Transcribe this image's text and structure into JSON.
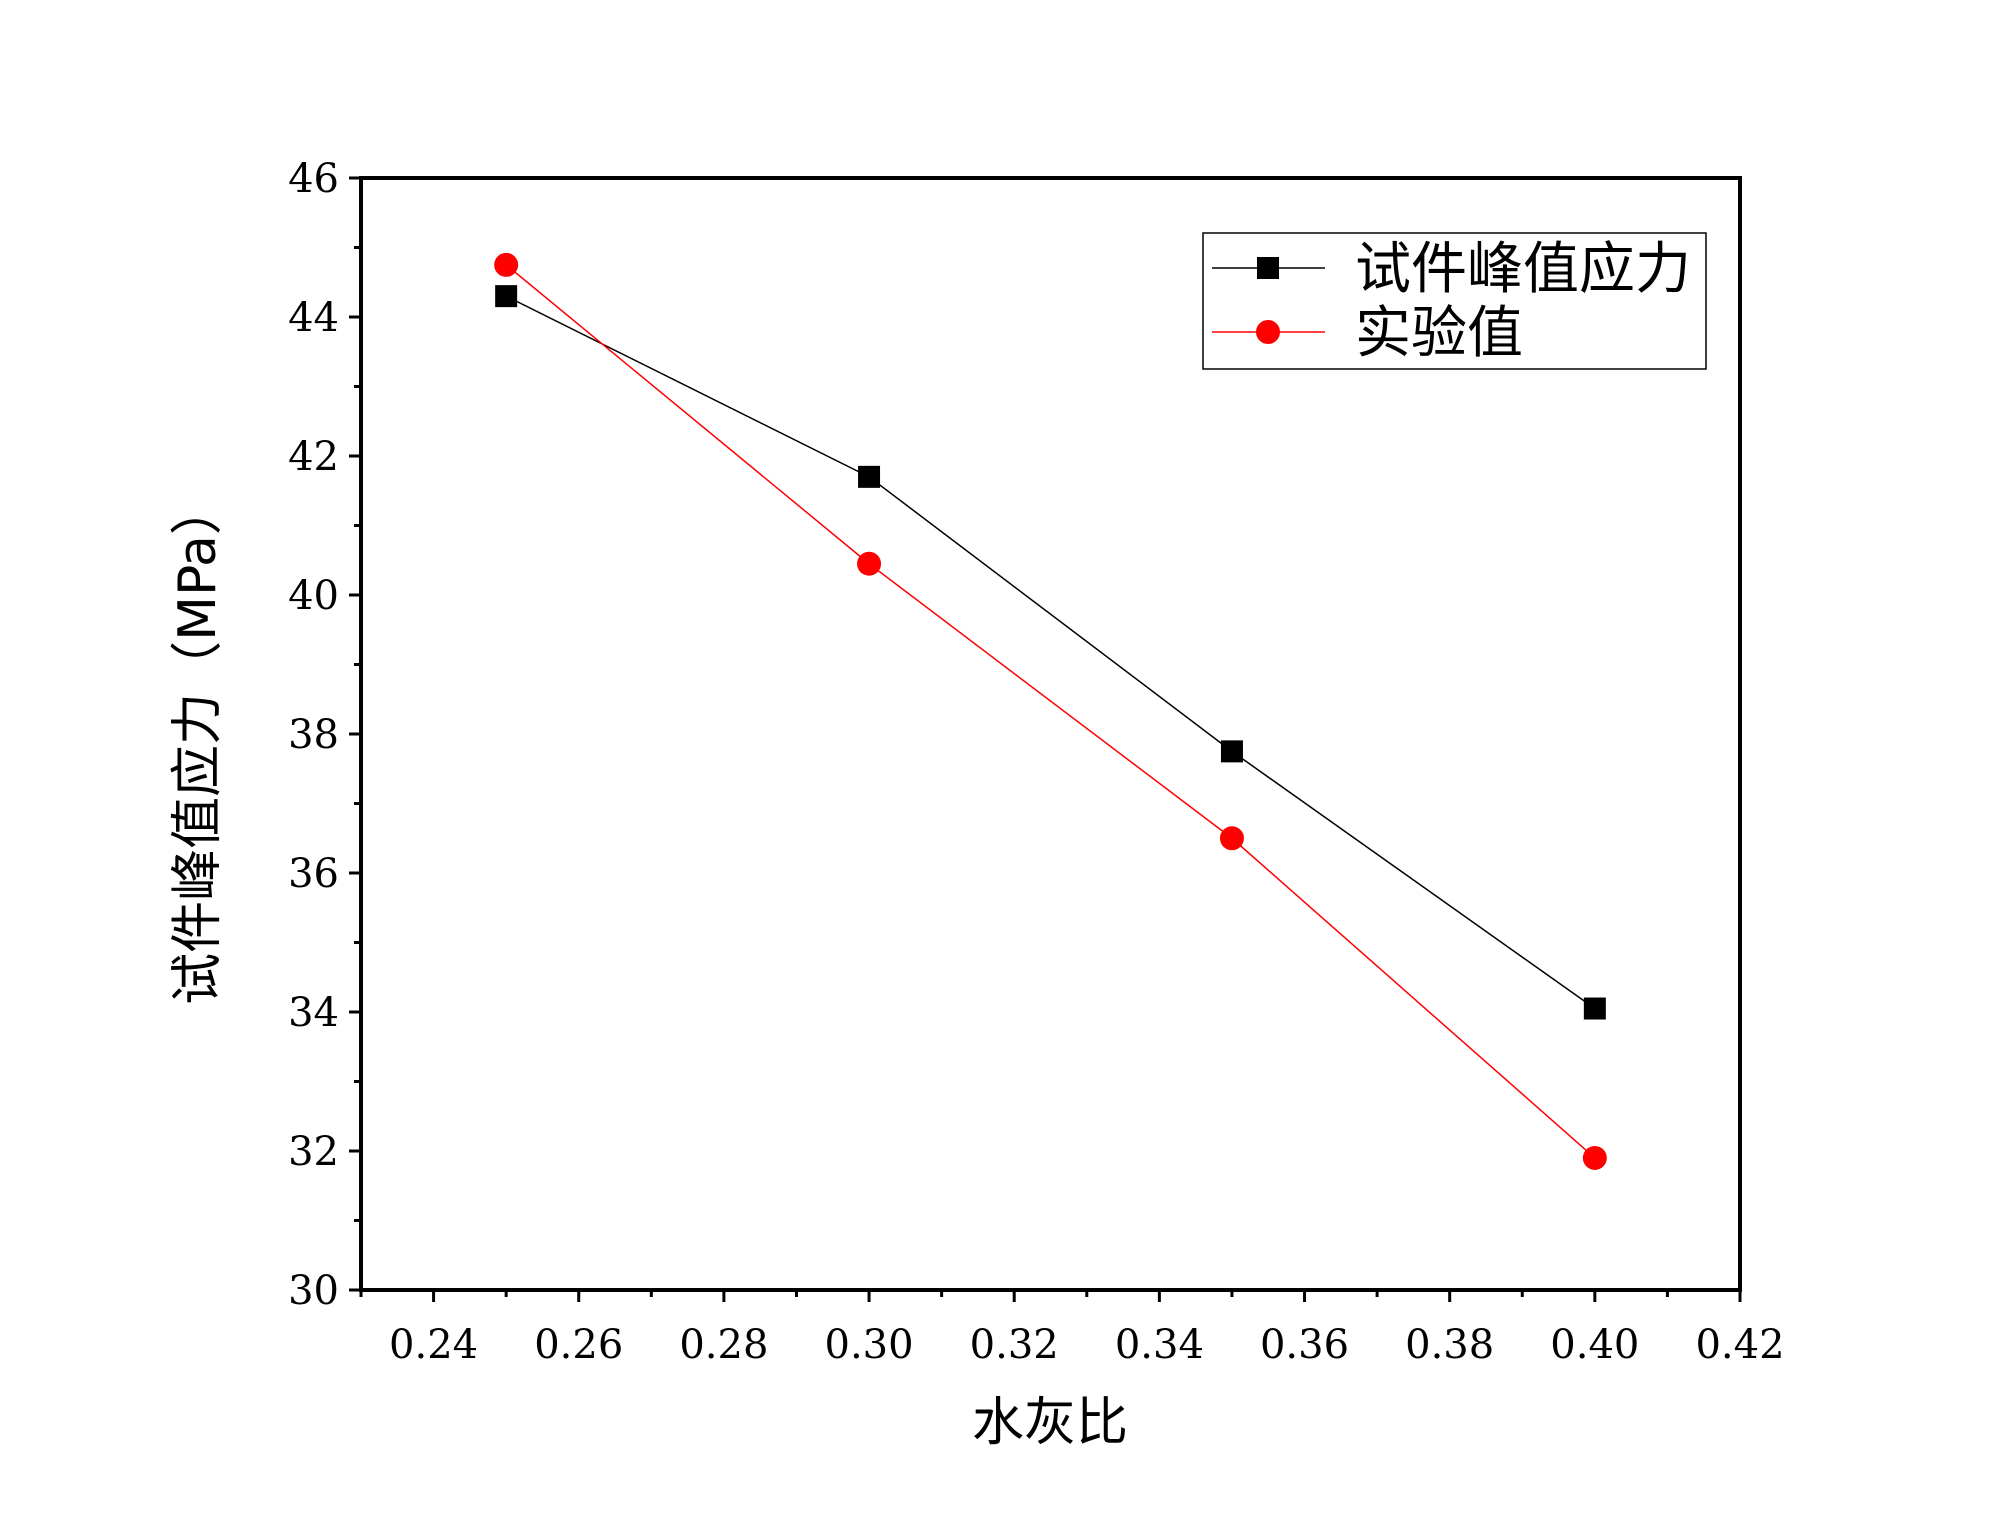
{
  "chart_data": {
    "type": "line",
    "title": "",
    "xlabel": "水灰比",
    "ylabel": "试件峰值应力（MPa）",
    "xlim": [
      0.23,
      0.42
    ],
    "ylim": [
      30,
      46
    ],
    "x_ticks": [
      "0.24",
      "0.26",
      "0.28",
      "0.30",
      "0.32",
      "0.34",
      "0.36",
      "0.38",
      "0.40",
      "0.42"
    ],
    "x_tick_values": [
      0.24,
      0.26,
      0.28,
      0.3,
      0.32,
      0.34,
      0.36,
      0.38,
      0.4,
      0.42
    ],
    "y_ticks": [
      "30",
      "32",
      "34",
      "36",
      "38",
      "40",
      "42",
      "44",
      "46"
    ],
    "y_tick_values": [
      30,
      32,
      34,
      36,
      38,
      40,
      42,
      44,
      46
    ],
    "grid": false,
    "legend_position": "top-right",
    "series": [
      {
        "name": "试件峰值应力",
        "marker": "square",
        "color": "#000000",
        "x": [
          0.25,
          0.3,
          0.35,
          0.4
        ],
        "y": [
          44.3,
          41.7,
          37.75,
          34.05
        ]
      },
      {
        "name": "实验值",
        "marker": "circle",
        "color": "#ff0000",
        "x": [
          0.25,
          0.3,
          0.35,
          0.4
        ],
        "y": [
          44.75,
          40.45,
          36.5,
          31.9
        ]
      }
    ]
  }
}
